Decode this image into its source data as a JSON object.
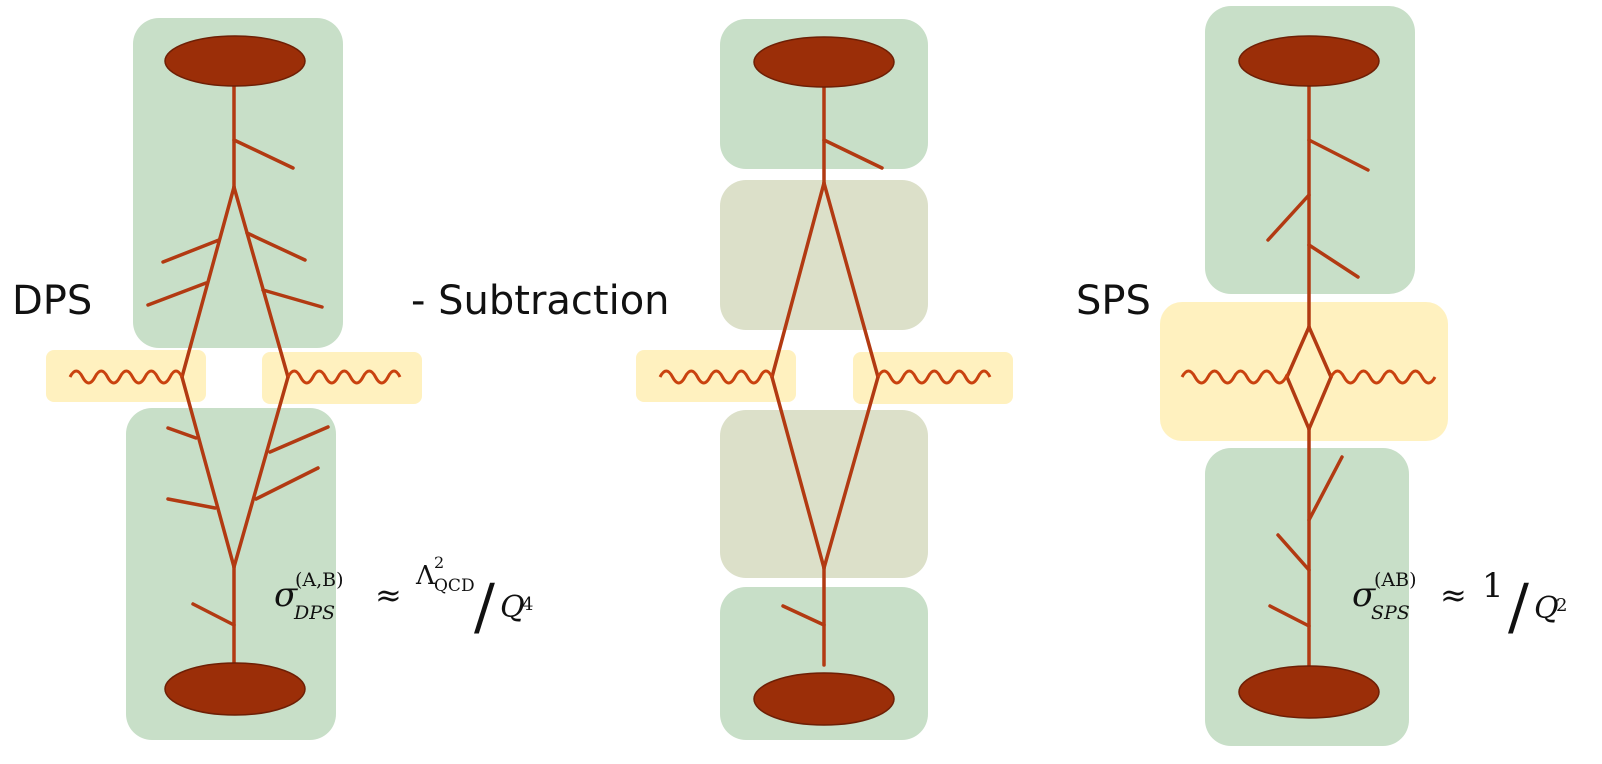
{
  "colors": {
    "hadron": "#9b2e08",
    "hadron_stroke": "#6e1f05",
    "line": "#b23a12",
    "green_box": "#c8dfc8",
    "khaki_box": "#dce0c9",
    "yellow_box": "#fff0b8"
  },
  "panels": {
    "dps": {
      "label": "DPS"
    },
    "subtraction": {
      "label": "- Subtraction"
    },
    "sps": {
      "label": "SPS"
    }
  },
  "formulas": {
    "dps": {
      "sigma": "σ",
      "superscript": "(A,B)",
      "subscript": "DPS",
      "approx": "≈",
      "numerator_symbol": "Λ",
      "numerator_exp": "2",
      "numerator_sub": "QCD",
      "slash": "/",
      "denominator": "Q",
      "denominator_exp": "4"
    },
    "sps": {
      "sigma": "σ",
      "superscript": "(AB)",
      "subscript": "SPS",
      "approx": "≈",
      "numerator": "1",
      "slash": "/",
      "denominator": "Q",
      "denominator_exp": "2"
    }
  }
}
